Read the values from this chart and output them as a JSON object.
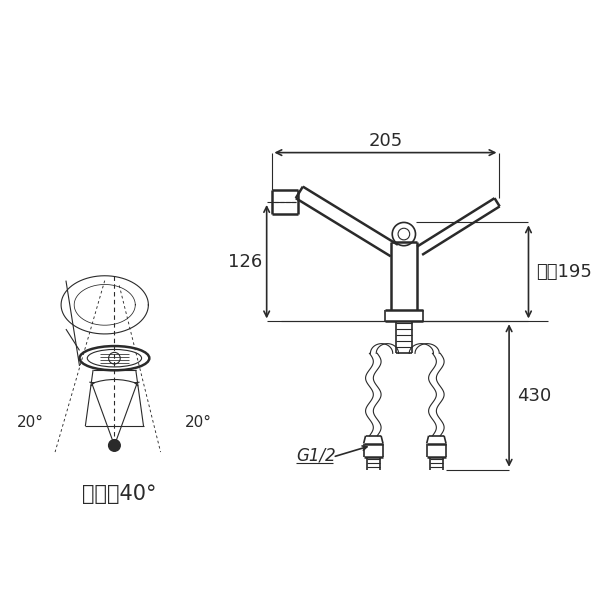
{
  "bg_color": "#ffffff",
  "line_color": "#2a2a2a",
  "dim_color": "#2a2a2a",
  "text_color": "#2a2a2a",
  "dim_205_text": "205",
  "dim_126_text": "126",
  "dim_195_text": "最大195",
  "dim_430_text": "430",
  "dim_g12_text": "G1/2",
  "swing_text": "首振り40°",
  "angle_left_text": "20°",
  "angle_right_text": "20°"
}
